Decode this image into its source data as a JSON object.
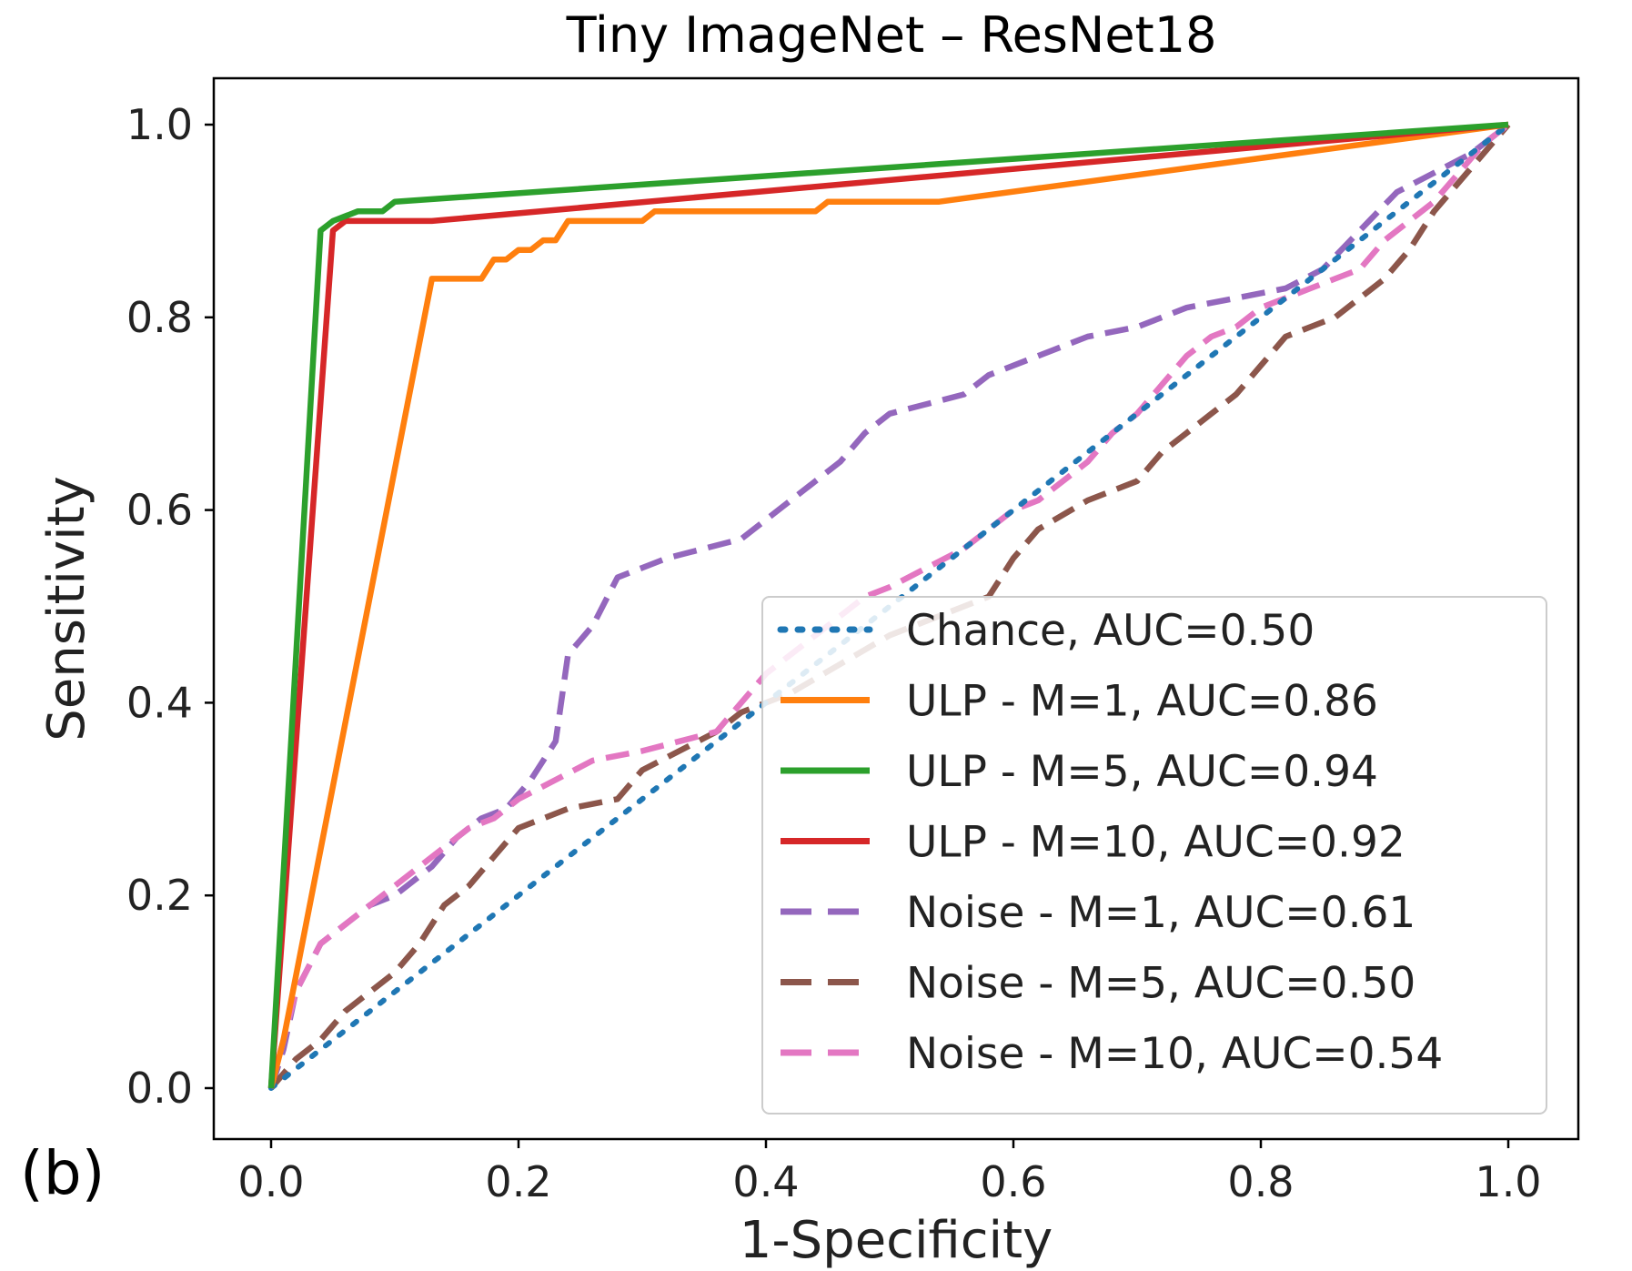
{
  "panel_label": "(b)",
  "chart_data": {
    "type": "line",
    "title": "Tiny ImageNet – ResNet18",
    "xlabel": "1-Specificity",
    "ylabel": "Sensitivity",
    "xlim": [
      0.0,
      1.0
    ],
    "ylim": [
      0.0,
      1.0
    ],
    "xticks": [
      "0.0",
      "0.2",
      "0.4",
      "0.6",
      "0.8",
      "1.0"
    ],
    "yticks": [
      "0.0",
      "0.2",
      "0.4",
      "0.6",
      "0.8",
      "1.0"
    ],
    "grid": false,
    "legend_position": "lower-right",
    "series": [
      {
        "name": "Chance, AUC=0.50",
        "color": "#1f77b4",
        "style": "dotted",
        "x": [
          0.0,
          1.0
        ],
        "y": [
          0.0,
          1.0
        ]
      },
      {
        "name": "ULP - M=1, AUC=0.86",
        "color": "#ff7f0e",
        "style": "solid",
        "x": [
          0.0,
          0.01,
          0.13,
          0.17,
          0.18,
          0.19,
          0.2,
          0.21,
          0.22,
          0.23,
          0.24,
          0.26,
          0.3,
          0.31,
          0.35,
          0.44,
          0.45,
          0.54,
          1.0
        ],
        "y": [
          0.0,
          0.05,
          0.84,
          0.84,
          0.86,
          0.86,
          0.87,
          0.87,
          0.88,
          0.88,
          0.9,
          0.9,
          0.9,
          0.91,
          0.91,
          0.91,
          0.92,
          0.92,
          1.0
        ]
      },
      {
        "name": "ULP - M=5, AUC=0.94",
        "color": "#2ca02c",
        "style": "solid",
        "x": [
          0.0,
          0.04,
          0.05,
          0.07,
          0.09,
          0.1,
          1.0
        ],
        "y": [
          0.0,
          0.89,
          0.9,
          0.91,
          0.91,
          0.92,
          1.0
        ]
      },
      {
        "name": "ULP - M=10, AUC=0.92",
        "color": "#d62728",
        "style": "solid",
        "x": [
          0.0,
          0.05,
          0.06,
          0.13,
          1.0
        ],
        "y": [
          0.0,
          0.89,
          0.9,
          0.9,
          1.0
        ]
      },
      {
        "name": "Noise - M=1, AUC=0.61",
        "color": "#9467bd",
        "style": "dashed",
        "x": [
          0.0,
          0.01,
          0.02,
          0.04,
          0.06,
          0.08,
          0.1,
          0.13,
          0.15,
          0.17,
          0.19,
          0.21,
          0.23,
          0.24,
          0.26,
          0.28,
          0.3,
          0.32,
          0.35,
          0.38,
          0.4,
          0.42,
          0.44,
          0.46,
          0.48,
          0.5,
          0.53,
          0.56,
          0.58,
          0.62,
          0.66,
          0.7,
          0.74,
          0.78,
          0.82,
          0.85,
          0.88,
          0.91,
          0.94,
          0.97,
          1.0
        ],
        "y": [
          0.0,
          0.04,
          0.1,
          0.15,
          0.17,
          0.19,
          0.2,
          0.23,
          0.26,
          0.28,
          0.29,
          0.32,
          0.36,
          0.45,
          0.48,
          0.53,
          0.54,
          0.55,
          0.56,
          0.57,
          0.59,
          0.61,
          0.63,
          0.65,
          0.68,
          0.7,
          0.71,
          0.72,
          0.74,
          0.76,
          0.78,
          0.79,
          0.81,
          0.82,
          0.83,
          0.85,
          0.89,
          0.93,
          0.95,
          0.97,
          1.0
        ]
      },
      {
        "name": "Noise - M=5, AUC=0.50",
        "color": "#8c564b",
        "style": "dashed",
        "x": [
          0.0,
          0.02,
          0.04,
          0.06,
          0.08,
          0.1,
          0.12,
          0.14,
          0.16,
          0.18,
          0.2,
          0.24,
          0.28,
          0.3,
          0.33,
          0.36,
          0.38,
          0.42,
          0.46,
          0.5,
          0.54,
          0.58,
          0.6,
          0.62,
          0.66,
          0.7,
          0.72,
          0.74,
          0.76,
          0.78,
          0.8,
          0.82,
          0.84,
          0.86,
          0.88,
          0.9,
          0.92,
          0.94,
          0.96,
          0.98,
          1.0
        ],
        "y": [
          0.0,
          0.03,
          0.05,
          0.08,
          0.1,
          0.12,
          0.15,
          0.19,
          0.21,
          0.24,
          0.27,
          0.29,
          0.3,
          0.33,
          0.35,
          0.37,
          0.39,
          0.41,
          0.44,
          0.47,
          0.49,
          0.51,
          0.55,
          0.58,
          0.61,
          0.63,
          0.66,
          0.68,
          0.7,
          0.72,
          0.75,
          0.78,
          0.79,
          0.8,
          0.82,
          0.84,
          0.87,
          0.91,
          0.94,
          0.97,
          1.0
        ]
      },
      {
        "name": "Noise - M=10, AUC=0.54",
        "color": "#e377c2",
        "style": "dashed",
        "x": [
          0.0,
          0.01,
          0.02,
          0.04,
          0.06,
          0.08,
          0.1,
          0.12,
          0.14,
          0.16,
          0.18,
          0.2,
          0.23,
          0.26,
          0.3,
          0.33,
          0.36,
          0.38,
          0.4,
          0.43,
          0.46,
          0.48,
          0.5,
          0.53,
          0.56,
          0.58,
          0.6,
          0.62,
          0.64,
          0.66,
          0.68,
          0.7,
          0.72,
          0.74,
          0.76,
          0.78,
          0.8,
          0.82,
          0.84,
          0.86,
          0.88,
          0.9,
          0.92,
          0.94,
          0.96,
          0.98,
          1.0
        ],
        "y": [
          0.0,
          0.05,
          0.1,
          0.15,
          0.17,
          0.19,
          0.21,
          0.23,
          0.25,
          0.27,
          0.28,
          0.3,
          0.32,
          0.34,
          0.35,
          0.36,
          0.37,
          0.4,
          0.43,
          0.46,
          0.49,
          0.51,
          0.52,
          0.54,
          0.56,
          0.58,
          0.6,
          0.61,
          0.63,
          0.65,
          0.68,
          0.7,
          0.73,
          0.76,
          0.78,
          0.79,
          0.81,
          0.82,
          0.83,
          0.84,
          0.85,
          0.88,
          0.9,
          0.92,
          0.95,
          0.98,
          1.0
        ]
      }
    ]
  }
}
